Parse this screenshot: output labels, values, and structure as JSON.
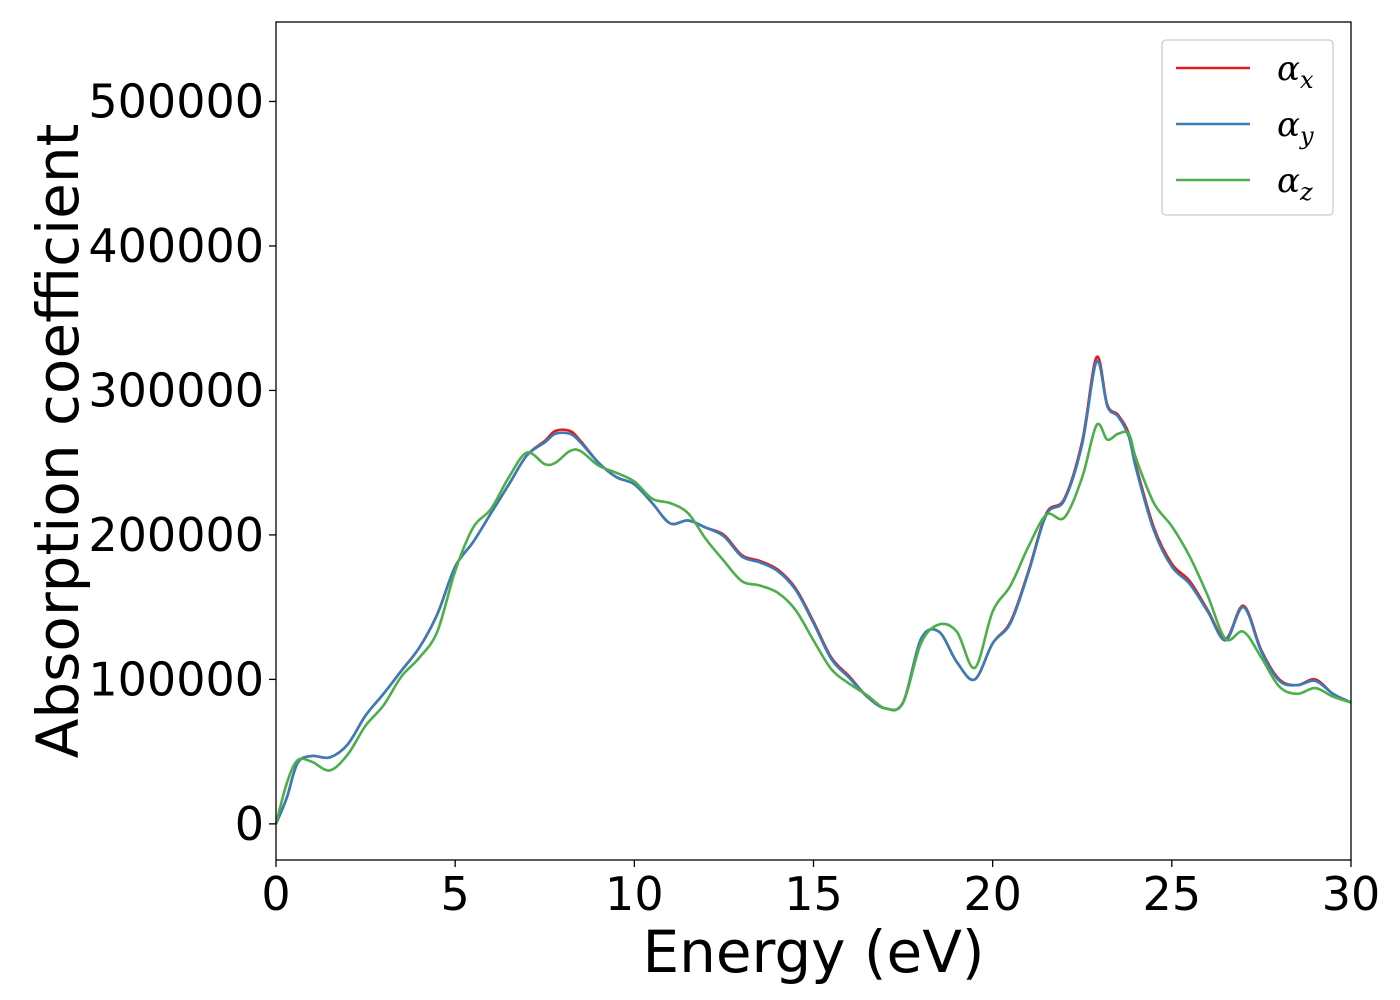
{
  "chart_data": {
    "type": "line",
    "title": "",
    "xlabel": "Energy (eV)",
    "ylabel": "Absorption coefficient",
    "xlim": [
      0,
      30
    ],
    "ylim": [
      -25000,
      555000
    ],
    "xticks": [
      0,
      5,
      10,
      15,
      20,
      25,
      30
    ],
    "xtick_labels": [
      "0",
      "5",
      "10",
      "15",
      "20",
      "25",
      "30"
    ],
    "yticks": [
      0,
      100000,
      200000,
      300000,
      400000,
      500000
    ],
    "ytick_labels": [
      "0",
      "100000",
      "200000",
      "300000",
      "400000",
      "500000"
    ],
    "grid": false,
    "legend_position": "top-right",
    "series": [
      {
        "name": "α_x",
        "legend_main": "α",
        "legend_sub": "x",
        "color": "#e41a1c",
        "x": [
          0,
          0.3,
          0.6,
          1.0,
          1.5,
          2.0,
          2.5,
          3.0,
          3.5,
          4.0,
          4.5,
          5.0,
          5.5,
          6.0,
          6.5,
          7.0,
          7.5,
          7.8,
          8.2,
          8.5,
          9.0,
          9.5,
          10.0,
          10.5,
          11.0,
          11.5,
          12.0,
          12.5,
          13.0,
          13.5,
          14.0,
          14.5,
          15.0,
          15.5,
          16.0,
          16.5,
          17.0,
          17.5,
          18.0,
          18.5,
          19.0,
          19.5,
          20.0,
          20.5,
          21.0,
          21.5,
          22.0,
          22.5,
          22.9,
          23.2,
          23.5,
          23.8,
          24.0,
          24.5,
          25.0,
          25.5,
          26.0,
          26.5,
          27.0,
          27.5,
          28.0,
          28.5,
          29.0,
          29.5,
          30.0
        ],
        "values": [
          0,
          18000,
          42000,
          47000,
          46000,
          55000,
          75000,
          90000,
          106000,
          122000,
          145000,
          178000,
          195000,
          215000,
          235000,
          255000,
          265000,
          272000,
          272000,
          265000,
          250000,
          240000,
          235000,
          222000,
          208000,
          210000,
          205000,
          200000,
          186000,
          182000,
          176000,
          163000,
          140000,
          115000,
          102000,
          88000,
          80000,
          84000,
          128000,
          133000,
          112000,
          100000,
          125000,
          140000,
          175000,
          215000,
          225000,
          265000,
          323000,
          290000,
          283000,
          270000,
          248000,
          205000,
          180000,
          168000,
          148000,
          128000,
          151000,
          120000,
          100000,
          96000,
          100000,
          90000,
          84000
        ]
      },
      {
        "name": "α_y",
        "legend_main": "α",
        "legend_sub": "y",
        "color": "#377eb8",
        "x": [
          0,
          0.3,
          0.6,
          1.0,
          1.5,
          2.0,
          2.5,
          3.0,
          3.5,
          4.0,
          4.5,
          5.0,
          5.5,
          6.0,
          6.5,
          7.0,
          7.5,
          7.8,
          8.2,
          8.5,
          9.0,
          9.5,
          10.0,
          10.5,
          11.0,
          11.5,
          12.0,
          12.5,
          13.0,
          13.5,
          14.0,
          14.5,
          15.0,
          15.5,
          16.0,
          16.5,
          17.0,
          17.5,
          18.0,
          18.5,
          19.0,
          19.5,
          20.0,
          20.5,
          21.0,
          21.5,
          22.0,
          22.5,
          22.9,
          23.2,
          23.5,
          23.8,
          24.0,
          24.5,
          25.0,
          25.5,
          26.0,
          26.5,
          27.0,
          27.5,
          28.0,
          28.5,
          29.0,
          29.5,
          30.0
        ],
        "values": [
          0,
          18000,
          42000,
          47000,
          46000,
          55000,
          75000,
          90000,
          106000,
          122000,
          145000,
          178000,
          195000,
          215000,
          235000,
          255000,
          264000,
          270000,
          270000,
          264000,
          250000,
          240000,
          235000,
          222000,
          208000,
          210000,
          205000,
          199000,
          185000,
          181000,
          175000,
          162000,
          139000,
          114000,
          101000,
          88000,
          80000,
          84000,
          128000,
          133000,
          112000,
          100000,
          125000,
          139000,
          174000,
          214000,
          224000,
          263000,
          320000,
          289000,
          282000,
          268000,
          246000,
          203000,
          178000,
          166000,
          147000,
          127000,
          150000,
          119000,
          99000,
          96000,
          99000,
          90000,
          84000
        ]
      },
      {
        "name": "α_z",
        "legend_main": "α",
        "legend_sub": "z",
        "color": "#4daf4a",
        "x": [
          0,
          0.3,
          0.6,
          1.0,
          1.5,
          2.0,
          2.5,
          3.0,
          3.5,
          4.0,
          4.5,
          5.0,
          5.5,
          6.0,
          6.5,
          7.0,
          7.5,
          7.8,
          8.2,
          8.5,
          9.0,
          9.5,
          10.0,
          10.5,
          11.0,
          11.5,
          12.0,
          12.5,
          13.0,
          13.5,
          14.0,
          14.5,
          15.0,
          15.5,
          16.0,
          16.5,
          17.0,
          17.5,
          18.0,
          18.5,
          19.0,
          19.5,
          20.0,
          20.5,
          21.0,
          21.5,
          22.0,
          22.5,
          22.9,
          23.2,
          23.5,
          23.8,
          24.0,
          24.5,
          25.0,
          25.5,
          26.0,
          26.5,
          27.0,
          27.5,
          28.0,
          28.5,
          29.0,
          29.5,
          30.0
        ],
        "values": [
          0,
          28000,
          44000,
          43000,
          37000,
          48000,
          68000,
          82000,
          102000,
          115000,
          133000,
          175000,
          205000,
          218000,
          240000,
          257000,
          249000,
          250000,
          258000,
          258000,
          248000,
          243000,
          237000,
          225000,
          222000,
          215000,
          197000,
          182000,
          168000,
          165000,
          160000,
          148000,
          127000,
          107000,
          97000,
          89000,
          80000,
          84000,
          125000,
          138000,
          133000,
          108000,
          147000,
          165000,
          192000,
          214000,
          212000,
          240000,
          276000,
          266000,
          270000,
          270000,
          253000,
          222000,
          206000,
          185000,
          158000,
          128000,
          133000,
          115000,
          95000,
          90000,
          94000,
          88000,
          84000
        ]
      }
    ]
  }
}
